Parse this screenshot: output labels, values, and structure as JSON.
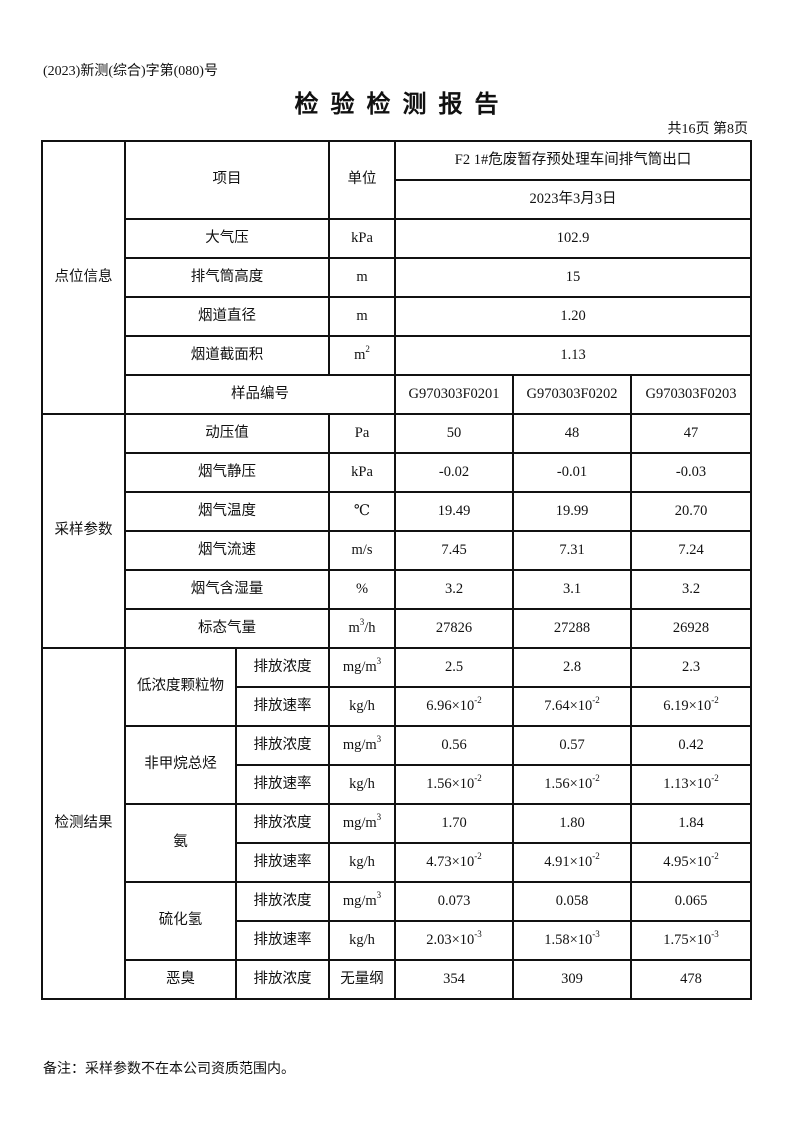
{
  "header": {
    "doc_number": "(2023)新测(综合)字第(080)号",
    "title": "检验检测报告",
    "page_info": "共16页 第8页"
  },
  "table": {
    "item_header": "项目",
    "unit_header": "单位",
    "location": "F2 1#危废暂存预处理车间排气筒出口",
    "date": "2023年3月3日",
    "site_info": {
      "group": "点位信息",
      "rows": [
        {
          "name": "大气压",
          "unit": {
            "base": "kPa",
            "sup": ""
          },
          "value": "102.9"
        },
        {
          "name": "排气筒高度",
          "unit": {
            "base": "m",
            "sup": ""
          },
          "value": "15"
        },
        {
          "name": "烟道直径",
          "unit": {
            "base": "m",
            "sup": ""
          },
          "value": "1.20"
        },
        {
          "name": "烟道截面积",
          "unit": {
            "base": "m",
            "sup": "2"
          },
          "value": "1.13"
        }
      ],
      "sample_label": "样品编号",
      "sample_ids": [
        "G970303F0201",
        "G970303F0202",
        "G970303F0203"
      ]
    },
    "sampling": {
      "group": "采样参数",
      "rows": [
        {
          "name": "动压值",
          "unit": {
            "base": "Pa",
            "sup": ""
          },
          "values": [
            "50",
            "48",
            "47"
          ]
        },
        {
          "name": "烟气静压",
          "unit": {
            "base": "kPa",
            "sup": ""
          },
          "values": [
            "-0.02",
            "-0.01",
            "-0.03"
          ]
        },
        {
          "name": "烟气温度",
          "unit": {
            "base": "℃",
            "sup": ""
          },
          "values": [
            "19.49",
            "19.99",
            "20.70"
          ]
        },
        {
          "name": "烟气流速",
          "unit": {
            "base": "m/s",
            "sup": ""
          },
          "values": [
            "7.45",
            "7.31",
            "7.24"
          ]
        },
        {
          "name": "烟气含湿量",
          "unit": {
            "base": "%",
            "sup": ""
          },
          "values": [
            "3.2",
            "3.1",
            "3.2"
          ]
        },
        {
          "name": "标态气量",
          "unit": {
            "base": "m",
            "sup": "3",
            "tail": "/h"
          },
          "values": [
            "27826",
            "27288",
            "26928"
          ]
        }
      ]
    },
    "results": {
      "group": "检测结果",
      "pollutants": [
        {
          "name": "低浓度颗粒物",
          "rows": [
            {
              "item": "排放浓度",
              "unit": {
                "base": "mg/m",
                "sup": "3"
              },
              "values": [
                {
                  "m": "2.5",
                  "e": ""
                },
                {
                  "m": "2.8",
                  "e": ""
                },
                {
                  "m": "2.3",
                  "e": ""
                }
              ]
            },
            {
              "item": "排放速率",
              "unit": {
                "base": "kg/h",
                "sup": ""
              },
              "values": [
                {
                  "m": "6.96×10",
                  "e": "-2"
                },
                {
                  "m": "7.64×10",
                  "e": "-2"
                },
                {
                  "m": "6.19×10",
                  "e": "-2"
                }
              ]
            }
          ]
        },
        {
          "name": "非甲烷总烃",
          "rows": [
            {
              "item": "排放浓度",
              "unit": {
                "base": "mg/m",
                "sup": "3"
              },
              "values": [
                {
                  "m": "0.56",
                  "e": ""
                },
                {
                  "m": "0.57",
                  "e": ""
                },
                {
                  "m": "0.42",
                  "e": ""
                }
              ]
            },
            {
              "item": "排放速率",
              "unit": {
                "base": "kg/h",
                "sup": ""
              },
              "values": [
                {
                  "m": "1.56×10",
                  "e": "-2"
                },
                {
                  "m": "1.56×10",
                  "e": "-2"
                },
                {
                  "m": "1.13×10",
                  "e": "-2"
                }
              ]
            }
          ]
        },
        {
          "name": "氨",
          "rows": [
            {
              "item": "排放浓度",
              "unit": {
                "base": "mg/m",
                "sup": "3"
              },
              "values": [
                {
                  "m": "1.70",
                  "e": ""
                },
                {
                  "m": "1.80",
                  "e": ""
                },
                {
                  "m": "1.84",
                  "e": ""
                }
              ]
            },
            {
              "item": "排放速率",
              "unit": {
                "base": "kg/h",
                "sup": ""
              },
              "values": [
                {
                  "m": "4.73×10",
                  "e": "-2"
                },
                {
                  "m": "4.91×10",
                  "e": "-2"
                },
                {
                  "m": "4.95×10",
                  "e": "-2"
                }
              ]
            }
          ]
        },
        {
          "name": "硫化氢",
          "rows": [
            {
              "item": "排放浓度",
              "unit": {
                "base": "mg/m",
                "sup": "3"
              },
              "values": [
                {
                  "m": "0.073",
                  "e": ""
                },
                {
                  "m": "0.058",
                  "e": ""
                },
                {
                  "m": "0.065",
                  "e": ""
                }
              ]
            },
            {
              "item": "排放速率",
              "unit": {
                "base": "kg/h",
                "sup": ""
              },
              "values": [
                {
                  "m": "2.03×10",
                  "e": "-3"
                },
                {
                  "m": "1.58×10",
                  "e": "-3"
                },
                {
                  "m": "1.75×10",
                  "e": "-3"
                }
              ]
            }
          ]
        },
        {
          "name": "恶臭",
          "rows": [
            {
              "item": "排放浓度",
              "unit": {
                "base": "无量纲",
                "sup": ""
              },
              "values": [
                {
                  "m": "354",
                  "e": ""
                },
                {
                  "m": "309",
                  "e": ""
                },
                {
                  "m": "478",
                  "e": ""
                }
              ]
            }
          ]
        }
      ]
    }
  },
  "footer": {
    "note": "备注：采样参数不在本公司资质范围内。"
  }
}
